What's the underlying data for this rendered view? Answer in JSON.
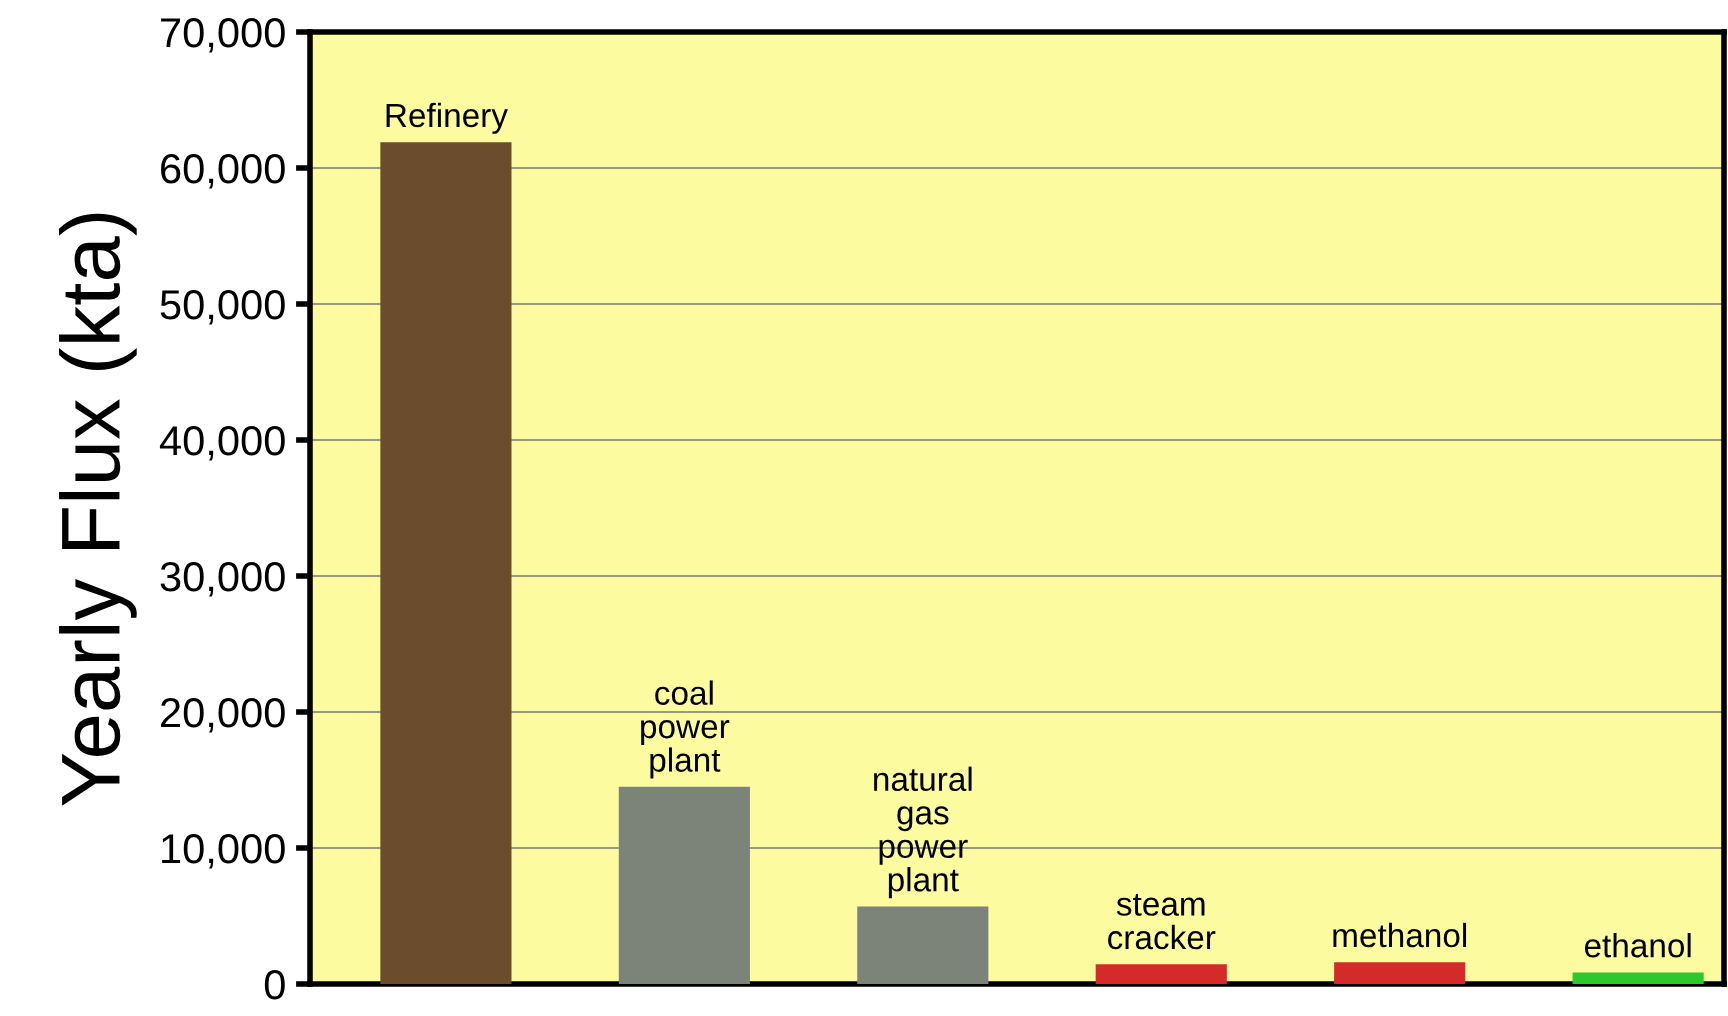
{
  "chart_data": {
    "type": "bar",
    "ylabel": "Yearly Flux (kta)",
    "categories": [
      "Refinery",
      "coal\npower\nplant",
      "natural\ngas\npower\nplant",
      "steam\ncracker",
      "methanol",
      "ethanol"
    ],
    "values": [
      61900,
      14500,
      5700,
      1450,
      1600,
      850
    ],
    "colors": [
      "#6b4c2c",
      "#7c8378",
      "#7c8378",
      "#d42a2a",
      "#d42a2a",
      "#2ec82e"
    ],
    "ylim": [
      0,
      70000
    ],
    "yticks": [
      {
        "value": 0,
        "label": "0"
      },
      {
        "value": 10000,
        "label": "10,000"
      },
      {
        "value": 20000,
        "label": "20,000"
      },
      {
        "value": 30000,
        "label": "30,000"
      },
      {
        "value": 40000,
        "label": "40,000"
      },
      {
        "value": 50000,
        "label": "50,000"
      },
      {
        "value": 60000,
        "label": "60,000"
      },
      {
        "value": 70000,
        "label": "70,000"
      }
    ],
    "grid": "y"
  }
}
